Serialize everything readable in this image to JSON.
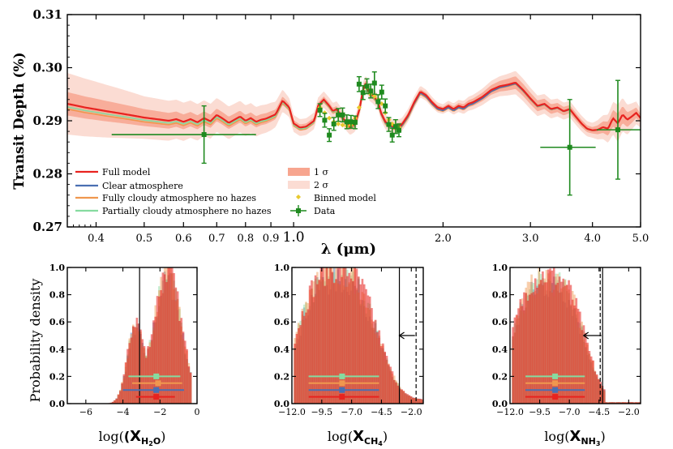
{
  "chart_data": [
    {
      "type": "line",
      "ylabel": "Transit Depth (%)",
      "xlabel": "λ (μm)",
      "xscale": "log",
      "xlim": [
        0.35,
        5.0
      ],
      "ylim": [
        0.27,
        0.31
      ],
      "xticks": [
        "0.4",
        "0.5",
        "0.6",
        "0.7",
        "0.8",
        "0.9",
        "1.0",
        "2.0",
        "3.0",
        "4.0",
        "5.0"
      ],
      "xtick_values": [
        0.4,
        0.5,
        0.6,
        0.7,
        0.8,
        0.9,
        1.0,
        2.0,
        3.0,
        4.0,
        5.0
      ],
      "yticks": [
        "0.27",
        "0.28",
        "0.29",
        "0.30",
        "0.31"
      ],
      "ytick_values": [
        0.27,
        0.28,
        0.29,
        0.3,
        0.31
      ],
      "colors": {
        "full": "#e8231f",
        "clear": "#4a6fb2",
        "cloudy": "#f0974e",
        "partial": "#86dba0",
        "band1": "#f7a58f",
        "band2": "#fbdcd3",
        "binned": "#e8c92e",
        "data": "#1f8a1f"
      },
      "full_model": {
        "x": [
          0.35,
          0.38,
          0.42,
          0.46,
          0.5,
          0.53,
          0.56,
          0.58,
          0.6,
          0.62,
          0.64,
          0.66,
          0.68,
          0.7,
          0.72,
          0.74,
          0.76,
          0.78,
          0.8,
          0.82,
          0.84,
          0.86,
          0.88,
          0.9,
          0.92,
          0.95,
          0.98,
          1.0,
          1.03,
          1.06,
          1.1,
          1.12,
          1.15,
          1.18,
          1.2,
          1.22,
          1.25,
          1.28,
          1.3,
          1.33,
          1.36,
          1.38,
          1.4,
          1.42,
          1.44,
          1.46,
          1.48,
          1.5,
          1.53,
          1.56,
          1.6,
          1.65,
          1.7,
          1.75,
          1.8,
          1.85,
          1.9,
          1.95,
          2.0,
          2.05,
          2.1,
          2.15,
          2.2,
          2.25,
          2.3,
          2.4,
          2.5,
          2.6,
          2.7,
          2.8,
          2.9,
          3.0,
          3.1,
          3.2,
          3.3,
          3.4,
          3.5,
          3.6,
          3.7,
          3.8,
          3.9,
          4.0,
          4.1,
          4.2,
          4.3,
          4.4,
          4.5,
          4.6,
          4.7,
          4.8,
          4.9,
          5.0
        ],
        "y": [
          0.2932,
          0.2925,
          0.2918,
          0.2912,
          0.2906,
          0.2903,
          0.29,
          0.2903,
          0.2898,
          0.2903,
          0.2897,
          0.2905,
          0.2899,
          0.2911,
          0.2904,
          0.2896,
          0.2902,
          0.2908,
          0.29,
          0.2905,
          0.2898,
          0.2902,
          0.2904,
          0.2908,
          0.2912,
          0.2938,
          0.2925,
          0.2895,
          0.2887,
          0.2889,
          0.29,
          0.2928,
          0.294,
          0.2928,
          0.2918,
          0.2922,
          0.2908,
          0.2895,
          0.2888,
          0.2894,
          0.2925,
          0.296,
          0.2972,
          0.2952,
          0.2948,
          0.2942,
          0.2935,
          0.2915,
          0.2898,
          0.2892,
          0.2888,
          0.2892,
          0.291,
          0.2935,
          0.2955,
          0.2948,
          0.2935,
          0.2925,
          0.2922,
          0.2928,
          0.2922,
          0.2928,
          0.2925,
          0.2932,
          0.2935,
          0.2945,
          0.2958,
          0.2965,
          0.2968,
          0.2972,
          0.2958,
          0.2942,
          0.2928,
          0.2932,
          0.2922,
          0.2925,
          0.2918,
          0.2922,
          0.2908,
          0.2895,
          0.2885,
          0.2882,
          0.2883,
          0.2888,
          0.2885,
          0.2905,
          0.2895,
          0.2912,
          0.2902,
          0.2908,
          0.2915,
          0.2905
        ]
      },
      "band1_halfwidth": {
        "x": [
          0.35,
          0.5,
          0.7,
          0.9,
          1.0,
          1.5,
          2.0,
          2.8,
          3.5,
          4.0,
          4.5,
          5.0
        ],
        "y": [
          0.0022,
          0.0016,
          0.0012,
          0.001,
          0.0006,
          0.0006,
          0.0004,
          0.0012,
          0.0008,
          0.0006,
          0.0018,
          0.0008
        ]
      },
      "band2_halfwidth": {
        "x": [
          0.35,
          0.5,
          0.7,
          0.9,
          1.0,
          1.5,
          2.0,
          2.8,
          3.5,
          4.0,
          4.5,
          5.0
        ],
        "y": [
          0.0058,
          0.004,
          0.0032,
          0.0026,
          0.0016,
          0.0014,
          0.0009,
          0.0022,
          0.0016,
          0.0014,
          0.0035,
          0.0018
        ]
      },
      "clear_offsets": {
        "x": [
          0.35,
          0.8,
          1.0,
          1.3,
          1.6,
          2.0,
          2.5,
          3.0,
          4.0,
          5.0
        ],
        "y": [
          0.0,
          0.0,
          0.0,
          0.0,
          -0.0002,
          -0.0003,
          -0.0003,
          -0.0001,
          0.0,
          0.0
        ]
      },
      "cloudy_offsets": {
        "x": [
          0.35,
          0.6,
          0.9,
          1.3,
          1.7,
          2.2,
          2.8,
          3.5,
          5.0
        ],
        "y": [
          -0.001,
          -0.0007,
          -0.0005,
          -0.0003,
          -0.0005,
          -0.0004,
          -0.0003,
          -0.0001,
          0.0
        ]
      },
      "partial_offsets": {
        "x": [
          0.35,
          0.6,
          0.9,
          1.3,
          1.7,
          2.2,
          2.8,
          3.5,
          5.0
        ],
        "y": [
          -0.0006,
          -0.0004,
          -0.0003,
          -0.0002,
          -0.0003,
          -0.0002,
          -0.0002,
          -0.0001,
          0.0
        ]
      },
      "data_points": [
        {
          "x": 0.66,
          "y": 0.2874,
          "xerr": [
            0.23,
            0.18
          ],
          "yerr": 0.0054
        },
        {
          "x": 1.13,
          "y": 0.292,
          "xerr": [
            0.011,
            0.011
          ],
          "yerr": 0.0012
        },
        {
          "x": 1.155,
          "y": 0.2901,
          "xerr": [
            0.011,
            0.011
          ],
          "yerr": 0.0013
        },
        {
          "x": 1.18,
          "y": 0.2873,
          "xerr": [
            0.011,
            0.011
          ],
          "yerr": 0.0012
        },
        {
          "x": 1.205,
          "y": 0.2894,
          "xerr": [
            0.011,
            0.011
          ],
          "yerr": 0.0012
        },
        {
          "x": 1.23,
          "y": 0.2911,
          "xerr": [
            0.011,
            0.011
          ],
          "yerr": 0.0012
        },
        {
          "x": 1.255,
          "y": 0.2911,
          "xerr": [
            0.011,
            0.011
          ],
          "yerr": 0.0013
        },
        {
          "x": 1.28,
          "y": 0.2898,
          "xerr": [
            0.011,
            0.011
          ],
          "yerr": 0.0013
        },
        {
          "x": 1.305,
          "y": 0.2898,
          "xerr": [
            0.011,
            0.011
          ],
          "yerr": 0.0012
        },
        {
          "x": 1.33,
          "y": 0.2897,
          "xerr": [
            0.011,
            0.011
          ],
          "yerr": 0.0012
        },
        {
          "x": 1.355,
          "y": 0.2969,
          "xerr": [
            0.011,
            0.011
          ],
          "yerr": 0.0014
        },
        {
          "x": 1.38,
          "y": 0.2953,
          "xerr": [
            0.011,
            0.011
          ],
          "yerr": 0.0013
        },
        {
          "x": 1.405,
          "y": 0.2965,
          "xerr": [
            0.011,
            0.011
          ],
          "yerr": 0.0014
        },
        {
          "x": 1.43,
          "y": 0.2956,
          "xerr": [
            0.011,
            0.011
          ],
          "yerr": 0.0013
        },
        {
          "x": 1.455,
          "y": 0.2971,
          "xerr": [
            0.011,
            0.011
          ],
          "yerr": 0.0021
        },
        {
          "x": 1.48,
          "y": 0.2936,
          "xerr": [
            0.011,
            0.011
          ],
          "yerr": 0.0013
        },
        {
          "x": 1.505,
          "y": 0.2954,
          "xerr": [
            0.011,
            0.011
          ],
          "yerr": 0.0013
        },
        {
          "x": 1.53,
          "y": 0.2928,
          "xerr": [
            0.011,
            0.011
          ],
          "yerr": 0.0013
        },
        {
          "x": 1.555,
          "y": 0.2893,
          "xerr": [
            0.011,
            0.011
          ],
          "yerr": 0.0013
        },
        {
          "x": 1.58,
          "y": 0.2873,
          "xerr": [
            0.011,
            0.011
          ],
          "yerr": 0.0013
        },
        {
          "x": 1.605,
          "y": 0.2889,
          "xerr": [
            0.011,
            0.011
          ],
          "yerr": 0.0013
        },
        {
          "x": 1.63,
          "y": 0.2882,
          "xerr": [
            0.011,
            0.011
          ],
          "yerr": 0.0012
        },
        {
          "x": 3.6,
          "y": 0.285,
          "xerr": [
            0.46,
            0.46
          ],
          "yerr": 0.009
        },
        {
          "x": 4.5,
          "y": 0.2883,
          "xerr": [
            0.42,
            0.5
          ],
          "yerr": 0.0093
        }
      ],
      "binned_model": {
        "x": [
          1.13,
          1.155,
          1.18,
          1.205,
          1.23,
          1.255,
          1.28,
          1.305,
          1.33,
          1.355,
          1.38,
          1.405,
          1.43,
          1.455,
          1.48,
          1.505,
          1.53,
          1.555,
          1.58,
          1.605,
          1.63
        ],
        "y": [
          0.2925,
          0.2915,
          0.2905,
          0.2898,
          0.2894,
          0.2892,
          0.289,
          0.2892,
          0.2905,
          0.2925,
          0.2955,
          0.2962,
          0.295,
          0.2946,
          0.294,
          0.2932,
          0.2915,
          0.2902,
          0.2894,
          0.289,
          0.2888
        ]
      },
      "legend_left": [
        "Full model",
        "Clear atmosphere",
        "Fully cloudy atmosphere no hazes",
        "Partially cloudy atmosphere no hazes"
      ],
      "legend_right": [
        "1 σ",
        "2 σ",
        "Binned model",
        "Data"
      ]
    },
    {
      "type": "histogram",
      "ylabel": "Probability density",
      "xlabel_prefix": "log(",
      "xlabel_sub": "H",
      "xlabel_sub2": "2",
      "xlabel_tail": "O",
      "xlim": [
        -7.0,
        0.0
      ],
      "ylim": [
        0.0,
        1.0
      ],
      "xticks": [
        "−6",
        "−4",
        "−2",
        "0"
      ],
      "xtick_values": [
        -6,
        -4,
        -2,
        0
      ],
      "yticks": [
        "0.0",
        "0.2",
        "0.4",
        "0.6",
        "0.8",
        "1.0"
      ],
      "ytick_values": [
        0.0,
        0.2,
        0.4,
        0.6,
        0.8,
        1.0
      ],
      "distribution": {
        "kind": "bimodal",
        "mu1": -3.3,
        "s1": 0.45,
        "a1": 0.58,
        "mu2": -1.6,
        "s2": 0.75,
        "a2": 0.95,
        "lo": -5.6,
        "hi": -0.3
      },
      "vline_solid": -3.1,
      "arrow_from": null,
      "arrow_to": null,
      "vline_dashed": null,
      "medians": [
        {
          "series": "partial",
          "center": -2.2,
          "low": -3.7,
          "high": -0.9,
          "y": 0.2
        },
        {
          "series": "cloudy",
          "center": -2.1,
          "low": -3.5,
          "high": -0.8,
          "y": 0.15
        },
        {
          "series": "clear",
          "center": -2.2,
          "low": -4.0,
          "high": -0.7,
          "y": 0.1
        },
        {
          "series": "full",
          "center": -2.2,
          "low": -3.3,
          "high": -1.2,
          "y": 0.05
        }
      ]
    },
    {
      "type": "histogram",
      "ylabel": "",
      "xlabel_prefix": "log(",
      "xlabel_sub": "CH",
      "xlabel_sub2": "4",
      "xlabel_tail": "",
      "xlim": [
        -12.0,
        -1.0
      ],
      "ylim": [
        0.0,
        1.0
      ],
      "xticks": [
        "−12.0",
        "−9.5",
        "−7.0",
        "−4.5",
        "−2.0"
      ],
      "xtick_values": [
        -12.0,
        -9.5,
        -7.0,
        -4.5,
        -2.0
      ],
      "yticks": [
        "0.0",
        "0.2",
        "0.4",
        "0.6",
        "0.8",
        "1.0"
      ],
      "ytick_values": [
        0.0,
        0.2,
        0.4,
        0.6,
        0.8,
        1.0
      ],
      "distribution": {
        "kind": "plateau",
        "mu1": -8.2,
        "s1": 2.2,
        "a1": 0.92,
        "lo": -11.8,
        "hi": -1.1,
        "tail": 0.03
      },
      "vline_solid": -3.0,
      "vline_dashed": -1.6,
      "arrow_from": -1.7,
      "arrow_to": -3.0,
      "arrow_y": 0.5,
      "medians": [
        {
          "series": "partial",
          "center": -7.8,
          "low": -10.6,
          "high": -4.7,
          "y": 0.2
        },
        {
          "series": "cloudy",
          "center": -7.8,
          "low": -10.6,
          "high": -4.7,
          "y": 0.15
        },
        {
          "series": "clear",
          "center": -7.8,
          "low": -10.6,
          "high": -4.7,
          "y": 0.1
        },
        {
          "series": "full",
          "center": -7.8,
          "low": -10.6,
          "high": -4.7,
          "y": 0.05
        }
      ]
    },
    {
      "type": "histogram",
      "ylabel": "",
      "xlabel_prefix": "log(",
      "xlabel_sub": "NH",
      "xlabel_sub2": "3",
      "xlabel_tail": "",
      "xlim": [
        -12.0,
        -1.0
      ],
      "ylim": [
        0.0,
        1.0
      ],
      "xticks": [
        "−12.0",
        "−9.5",
        "−7.0",
        "−4.5",
        "−2.0"
      ],
      "xtick_values": [
        -12.0,
        -9.5,
        -7.0,
        -4.5,
        -2.0
      ],
      "yticks": [
        "0.0",
        "0.2",
        "0.4",
        "0.6",
        "0.8",
        "1.0"
      ],
      "ytick_values": [
        0.0,
        0.2,
        0.4,
        0.6,
        0.8,
        1.0
      ],
      "distribution": {
        "kind": "plateau",
        "mu1": -8.8,
        "s1": 2.0,
        "a1": 0.9,
        "lo": -11.8,
        "hi": -4.0,
        "tail": 0.01
      },
      "vline_solid": -4.2,
      "vline_dashed": -4.4,
      "arrow_from": -4.3,
      "arrow_to": -5.8,
      "arrow_y": 0.5,
      "medians": [
        {
          "series": "partial",
          "center": -8.2,
          "low": -10.7,
          "high": -5.7,
          "y": 0.2
        },
        {
          "series": "cloudy",
          "center": -8.2,
          "low": -10.7,
          "high": -5.7,
          "y": 0.15
        },
        {
          "series": "clear",
          "center": -8.2,
          "low": -10.7,
          "high": -5.7,
          "y": 0.1
        },
        {
          "series": "full",
          "center": -8.2,
          "low": -10.7,
          "high": -5.7,
          "y": 0.05
        }
      ]
    }
  ]
}
